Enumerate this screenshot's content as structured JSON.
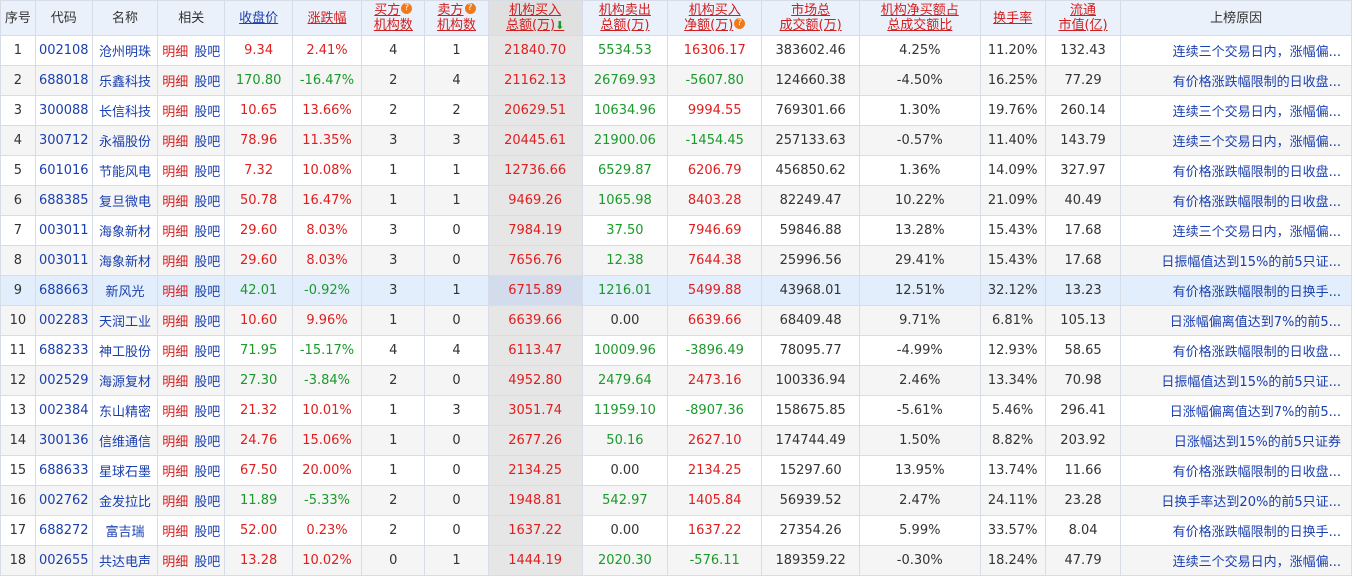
{
  "headers": {
    "seq": "序号",
    "code": "代码",
    "name": "名称",
    "related": "相关",
    "close": "收盘价",
    "change": "涨跌幅",
    "buyers_1": "买方",
    "buyers_2": "机构数",
    "sellers_1": "卖方",
    "sellers_2": "机构数",
    "buy_1": "机构买入",
    "buy_2": "总额(万)",
    "sell_1": "机构卖出",
    "sell_2": "总额(万)",
    "net_1": "机构买入",
    "net_2": "净额(万)",
    "mkt_1": "市场总",
    "mkt_2": "成交额(万)",
    "ratio_1": "机构净买额占",
    "ratio_2": "总成交额比",
    "turnover": "换手率",
    "cap_1": "流通",
    "cap_2": "市值(亿)",
    "reason": "上榜原因"
  },
  "icons": {
    "question": "?",
    "sort_arrow": "⬇"
  },
  "row_labels": {
    "detail": "明细",
    "bar": "股吧"
  },
  "rows": [
    {
      "seq": "1",
      "code": "002108",
      "name": "沧州明珠",
      "close": "9.34",
      "change": "2.41%",
      "buyers": "4",
      "sellers": "1",
      "buy": "21840.70",
      "sell": "5534.53",
      "net": "16306.17",
      "mkt": "383602.46",
      "ratio": "4.25%",
      "turnover": "11.20%",
      "cap": "132.43",
      "reason": "连续三个交易日内，涨幅偏..."
    },
    {
      "seq": "2",
      "code": "688018",
      "name": "乐鑫科技",
      "close": "170.80",
      "change": "-16.47%",
      "buyers": "2",
      "sellers": "4",
      "buy": "21162.13",
      "sell": "26769.93",
      "net": "-5607.80",
      "mkt": "124660.38",
      "ratio": "-4.50%",
      "turnover": "16.25%",
      "cap": "77.29",
      "reason": "有价格涨跌幅限制的日收盘..."
    },
    {
      "seq": "3",
      "code": "300088",
      "name": "长信科技",
      "close": "10.65",
      "change": "13.66%",
      "buyers": "2",
      "sellers": "2",
      "buy": "20629.51",
      "sell": "10634.96",
      "net": "9994.55",
      "mkt": "769301.66",
      "ratio": "1.30%",
      "turnover": "19.76%",
      "cap": "260.14",
      "reason": "连续三个交易日内，涨幅偏..."
    },
    {
      "seq": "4",
      "code": "300712",
      "name": "永福股份",
      "close": "78.96",
      "change": "11.35%",
      "buyers": "3",
      "sellers": "3",
      "buy": "20445.61",
      "sell": "21900.06",
      "net": "-1454.45",
      "mkt": "257133.63",
      "ratio": "-0.57%",
      "turnover": "11.40%",
      "cap": "143.79",
      "reason": "连续三个交易日内，涨幅偏..."
    },
    {
      "seq": "5",
      "code": "601016",
      "name": "节能风电",
      "close": "7.32",
      "change": "10.08%",
      "buyers": "1",
      "sellers": "1",
      "buy": "12736.66",
      "sell": "6529.87",
      "net": "6206.79",
      "mkt": "456850.62",
      "ratio": "1.36%",
      "turnover": "14.09%",
      "cap": "327.97",
      "reason": "有价格涨跌幅限制的日收盘..."
    },
    {
      "seq": "6",
      "code": "688385",
      "name": "复旦微电",
      "close": "50.78",
      "change": "16.47%",
      "buyers": "1",
      "sellers": "1",
      "buy": "9469.26",
      "sell": "1065.98",
      "net": "8403.28",
      "mkt": "82249.47",
      "ratio": "10.22%",
      "turnover": "21.09%",
      "cap": "40.49",
      "reason": "有价格涨跌幅限制的日收盘..."
    },
    {
      "seq": "7",
      "code": "003011",
      "name": "海象新材",
      "close": "29.60",
      "change": "8.03%",
      "buyers": "3",
      "sellers": "0",
      "buy": "7984.19",
      "sell": "37.50",
      "net": "7946.69",
      "mkt": "59846.88",
      "ratio": "13.28%",
      "turnover": "15.43%",
      "cap": "17.68",
      "reason": "连续三个交易日内，涨幅偏..."
    },
    {
      "seq": "8",
      "code": "003011",
      "name": "海象新材",
      "close": "29.60",
      "change": "8.03%",
      "buyers": "3",
      "sellers": "0",
      "buy": "7656.76",
      "sell": "12.38",
      "net": "7644.38",
      "mkt": "25996.56",
      "ratio": "29.41%",
      "turnover": "15.43%",
      "cap": "17.68",
      "reason": "日振幅值达到15%的前5只证..."
    },
    {
      "seq": "9",
      "code": "688663",
      "name": "新风光",
      "close": "42.01",
      "change": "-0.92%",
      "buyers": "3",
      "sellers": "1",
      "buy": "6715.89",
      "sell": "1216.01",
      "net": "5499.88",
      "mkt": "43968.01",
      "ratio": "12.51%",
      "turnover": "32.12%",
      "cap": "13.23",
      "reason": "有价格涨跌幅限制的日换手..."
    },
    {
      "seq": "10",
      "code": "002283",
      "name": "天润工业",
      "close": "10.60",
      "change": "9.96%",
      "buyers": "1",
      "sellers": "0",
      "buy": "6639.66",
      "sell": "0.00",
      "net": "6639.66",
      "mkt": "68409.48",
      "ratio": "9.71%",
      "turnover": "6.81%",
      "cap": "105.13",
      "reason": "日涨幅偏离值达到7%的前5..."
    },
    {
      "seq": "11",
      "code": "688233",
      "name": "神工股份",
      "close": "71.95",
      "change": "-15.17%",
      "buyers": "4",
      "sellers": "4",
      "buy": "6113.47",
      "sell": "10009.96",
      "net": "-3896.49",
      "mkt": "78095.77",
      "ratio": "-4.99%",
      "turnover": "12.93%",
      "cap": "58.65",
      "reason": "有价格涨跌幅限制的日收盘..."
    },
    {
      "seq": "12",
      "code": "002529",
      "name": "海源复材",
      "close": "27.30",
      "change": "-3.84%",
      "buyers": "2",
      "sellers": "0",
      "buy": "4952.80",
      "sell": "2479.64",
      "net": "2473.16",
      "mkt": "100336.94",
      "ratio": "2.46%",
      "turnover": "13.34%",
      "cap": "70.98",
      "reason": "日振幅值达到15%的前5只证..."
    },
    {
      "seq": "13",
      "code": "002384",
      "name": "东山精密",
      "close": "21.32",
      "change": "10.01%",
      "buyers": "1",
      "sellers": "3",
      "buy": "3051.74",
      "sell": "11959.10",
      "net": "-8907.36",
      "mkt": "158675.85",
      "ratio": "-5.61%",
      "turnover": "5.46%",
      "cap": "296.41",
      "reason": "日涨幅偏离值达到7%的前5..."
    },
    {
      "seq": "14",
      "code": "300136",
      "name": "信维通信",
      "close": "24.76",
      "change": "15.06%",
      "buyers": "1",
      "sellers": "0",
      "buy": "2677.26",
      "sell": "50.16",
      "net": "2627.10",
      "mkt": "174744.49",
      "ratio": "1.50%",
      "turnover": "8.82%",
      "cap": "203.92",
      "reason": "日涨幅达到15%的前5只证券"
    },
    {
      "seq": "15",
      "code": "688633",
      "name": "星球石墨",
      "close": "67.50",
      "change": "20.00%",
      "buyers": "1",
      "sellers": "0",
      "buy": "2134.25",
      "sell": "0.00",
      "net": "2134.25",
      "mkt": "15297.60",
      "ratio": "13.95%",
      "turnover": "13.74%",
      "cap": "11.66",
      "reason": "有价格涨跌幅限制的日收盘..."
    },
    {
      "seq": "16",
      "code": "002762",
      "name": "金发拉比",
      "close": "11.89",
      "change": "-5.33%",
      "buyers": "2",
      "sellers": "0",
      "buy": "1948.81",
      "sell": "542.97",
      "net": "1405.84",
      "mkt": "56939.52",
      "ratio": "2.47%",
      "turnover": "24.11%",
      "cap": "23.28",
      "reason": "日换手率达到20%的前5只证..."
    },
    {
      "seq": "17",
      "code": "688272",
      "name": "富吉瑞",
      "close": "52.00",
      "change": "0.23%",
      "buyers": "2",
      "sellers": "0",
      "buy": "1637.22",
      "sell": "0.00",
      "net": "1637.22",
      "mkt": "27354.26",
      "ratio": "5.99%",
      "turnover": "33.57%",
      "cap": "8.04",
      "reason": "有价格涨跌幅限制的日换手..."
    },
    {
      "seq": "18",
      "code": "002655",
      "name": "共达电声",
      "close": "13.28",
      "change": "10.02%",
      "buyers": "0",
      "sellers": "1",
      "buy": "1444.19",
      "sell": "2020.30",
      "net": "-576.11",
      "mkt": "189359.22",
      "ratio": "-0.30%",
      "turnover": "18.24%",
      "cap": "47.79",
      "reason": "连续三个交易日内，涨幅偏..."
    }
  ],
  "colors": {
    "up": "#e01e1e",
    "down": "#1a9a2a",
    "link": "#1a3fb0",
    "header_bg": "#eaf1fa",
    "highlight_row": "#e3eefc",
    "sorted_col": "#e6e6e6"
  }
}
